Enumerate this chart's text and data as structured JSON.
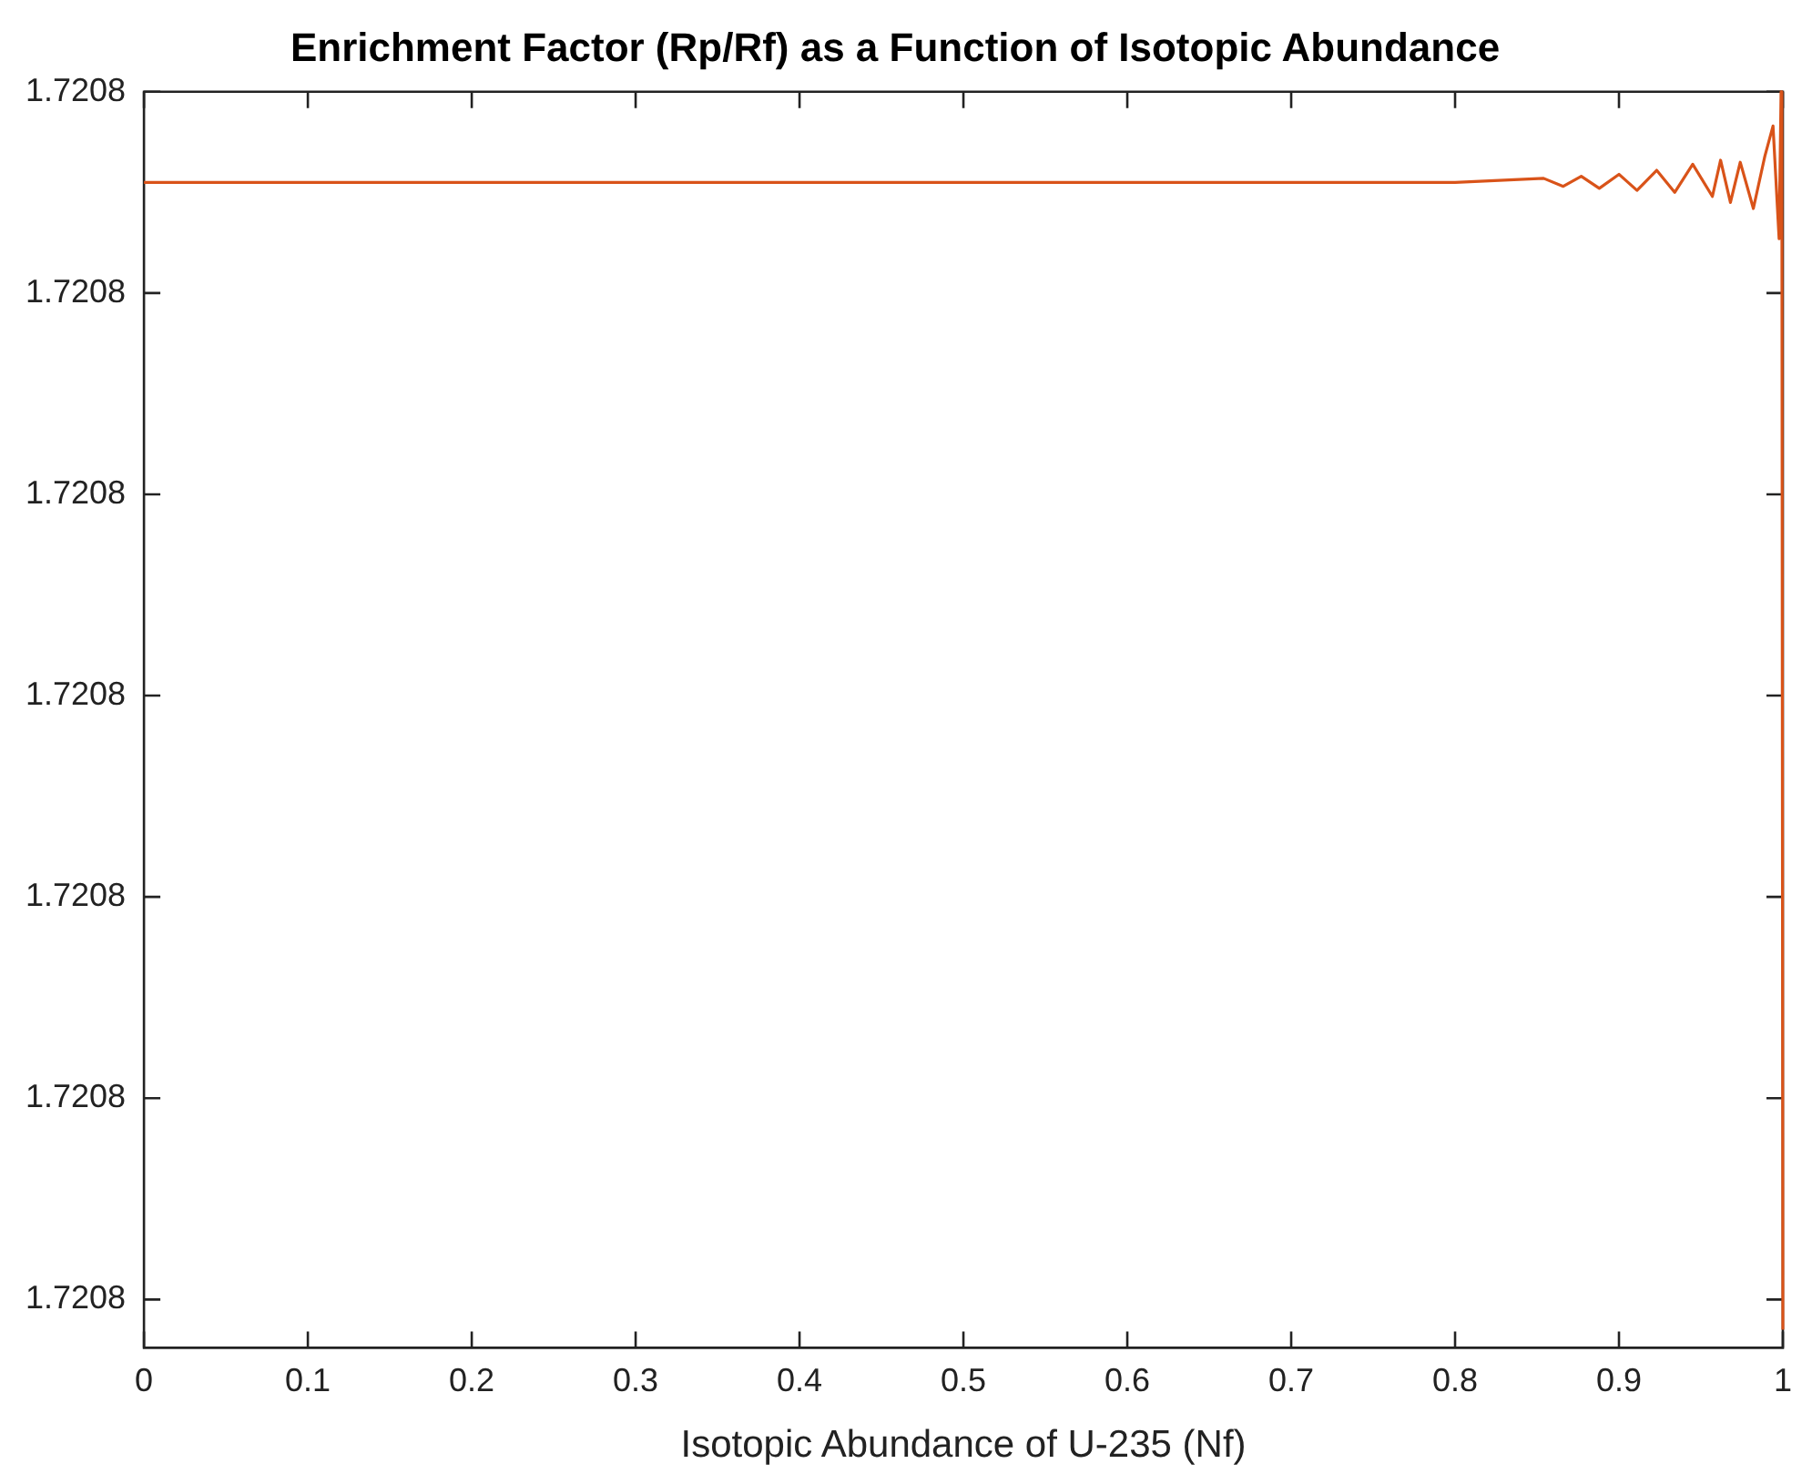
{
  "chart_data": {
    "type": "line",
    "title": "Enrichment Factor (Rp/Rf) as a Function of Isotopic Abundance",
    "xlabel": "Isotopic Abundance of U-235 (Nf)",
    "x": [
      0,
      0.1,
      0.2,
      0.3,
      0.4,
      0.5,
      0.6,
      0.7,
      0.8,
      0.854,
      0.866,
      0.877,
      0.888,
      0.9,
      0.911,
      0.923,
      0.934,
      0.945,
      0.957,
      0.962,
      0.968,
      0.974,
      0.982,
      0.989,
      0.994,
      0.9977,
      0.9989,
      0.9994,
      1
    ],
    "series": [
      {
        "color": "#d95319",
        "values": [
          1.7208355,
          1.7208355,
          1.7208355,
          1.7208355,
          1.7208355,
          1.7208355,
          1.7208355,
          1.7208355,
          1.7208355,
          1.7208357,
          1.7208353,
          1.7208358,
          1.7208352,
          1.7208359,
          1.7208351,
          1.7208361,
          1.720835,
          1.7208364,
          1.7208348,
          1.7208366,
          1.7208345,
          1.7208365,
          1.7208342,
          1.7208368,
          1.7208383,
          1.7208327,
          1.72084,
          1.720835,
          1.7207785
        ]
      }
    ],
    "xlim": [
      0,
      1
    ],
    "xticks": [
      0,
      0.1,
      0.2,
      0.3,
      0.4,
      0.5,
      0.6,
      0.7,
      0.8,
      0.9,
      1
    ],
    "ylim": [
      1.7207776,
      1.72084
    ],
    "yticks": [
      {
        "value": 1.72078,
        "label": "1.7208"
      },
      {
        "value": 1.72079,
        "label": "1.7208"
      },
      {
        "value": 1.7208,
        "label": "1.7208"
      },
      {
        "value": 1.72081,
        "label": "1.7208"
      },
      {
        "value": 1.72082,
        "label": "1.7208"
      },
      {
        "value": 1.72083,
        "label": "1.7208"
      },
      {
        "value": 1.72084,
        "label": "1.7208"
      }
    ],
    "grid": false,
    "legend": false,
    "marker": "none",
    "line_style": "solid"
  }
}
